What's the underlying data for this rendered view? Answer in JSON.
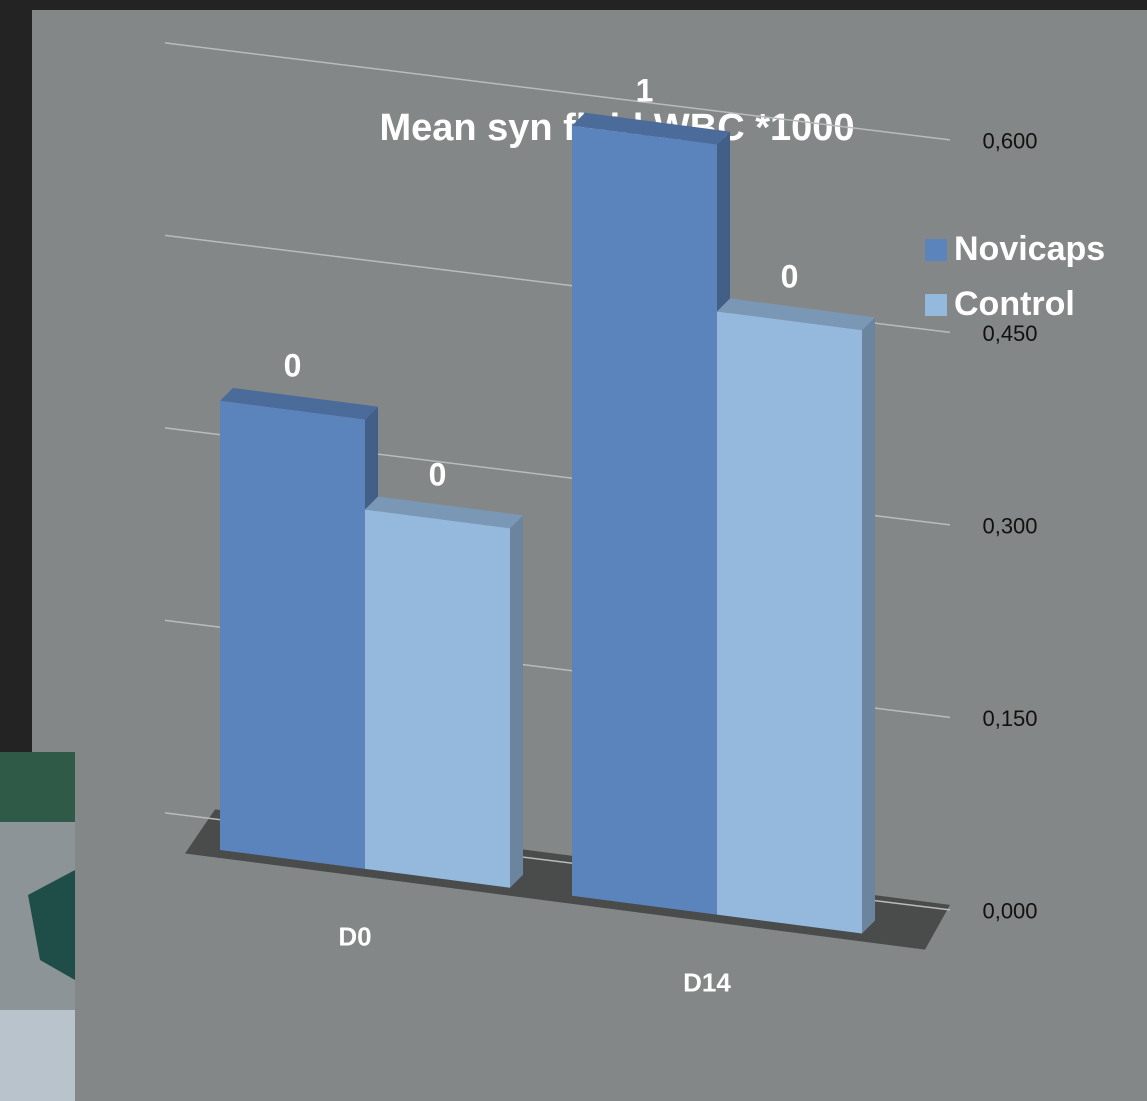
{
  "chart_data": {
    "type": "bar3d",
    "title": "Mean syn fluid WBC *1000",
    "categories": [
      "D0",
      "D14"
    ],
    "series": [
      {
        "name": "Novicaps",
        "color": "#5b84bd",
        "values": [
          0.35,
          0.6
        ],
        "value_labels": [
          "0",
          "1"
        ]
      },
      {
        "name": "Control",
        "color": "#95b9dd",
        "values": [
          0.28,
          0.47
        ],
        "value_labels": [
          "0",
          "0"
        ]
      }
    ],
    "ylim": [
      0,
      0.6
    ],
    "yticks": [
      {
        "value": 0,
        "label": "0,000"
      },
      {
        "value": 0.15,
        "label": "0,150"
      },
      {
        "value": 0.3,
        "label": "0,300"
      },
      {
        "value": 0.45,
        "label": "0,450"
      },
      {
        "value": 0.6,
        "label": "0,600"
      }
    ],
    "grid": true,
    "legend": "top-right"
  }
}
